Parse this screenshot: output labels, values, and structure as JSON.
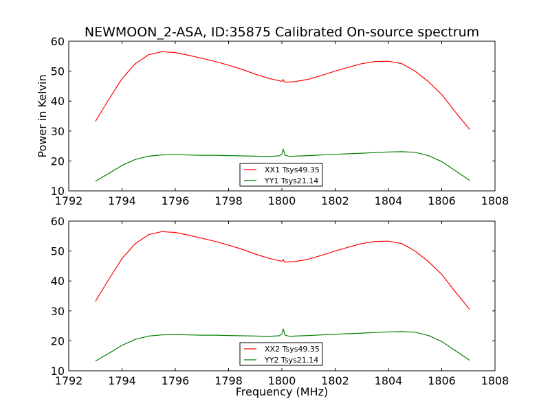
{
  "figure": {
    "title": "NEWMOON_2-ASA, ID:35875 Calibrated On-source spectrum",
    "xlabel": "Frequency (MHz)",
    "ylabel": "Power in Kelvin"
  },
  "colors": {
    "xx": "#ff0000",
    "yy": "#008000",
    "axes": "#000000"
  },
  "chart_data": [
    {
      "type": "line",
      "ylabel": "Power in Kelvin",
      "xlabel": "",
      "xlim": [
        1792,
        1808
      ],
      "ylim": [
        10,
        60
      ],
      "xticks": [
        1792,
        1794,
        1796,
        1798,
        1800,
        1802,
        1804,
        1806,
        1808
      ],
      "yticks": [
        10,
        20,
        30,
        40,
        50,
        60
      ],
      "grid": false,
      "legend_position": "bottom-center",
      "series": [
        {
          "name": "XX1 Tsys49.35",
          "color": "#ff0000",
          "x": [
            1793.0,
            1793.5,
            1794.0,
            1794.5,
            1795.0,
            1795.5,
            1796.0,
            1796.5,
            1797.0,
            1797.5,
            1798.0,
            1798.5,
            1799.0,
            1799.5,
            1800.0,
            1800.05,
            1800.1,
            1800.5,
            1801.0,
            1801.5,
            1802.0,
            1802.5,
            1803.0,
            1803.5,
            1804.0,
            1804.5,
            1805.0,
            1805.5,
            1806.0,
            1806.5,
            1807.05
          ],
          "y": [
            33.2,
            40.5,
            47.5,
            52.5,
            55.5,
            56.5,
            56.2,
            55.3,
            54.3,
            53.2,
            52.0,
            50.6,
            49.0,
            47.6,
            46.6,
            47.2,
            46.3,
            46.5,
            47.3,
            48.6,
            50.0,
            51.3,
            52.5,
            53.2,
            53.3,
            52.5,
            50.0,
            46.5,
            42.2,
            36.5,
            30.5
          ]
        },
        {
          "name": "YY1 Tsys21.14",
          "color": "#008000",
          "x": [
            1793.0,
            1793.5,
            1794.0,
            1794.5,
            1795.0,
            1795.5,
            1796.0,
            1796.5,
            1797.0,
            1797.5,
            1798.0,
            1798.5,
            1799.0,
            1799.5,
            1799.9,
            1800.0,
            1800.05,
            1800.12,
            1800.3,
            1800.5,
            1801.0,
            1801.5,
            1802.0,
            1802.5,
            1803.0,
            1803.5,
            1804.0,
            1804.5,
            1805.0,
            1805.5,
            1806.0,
            1806.5,
            1807.05
          ],
          "y": [
            13.2,
            15.8,
            18.5,
            20.5,
            21.6,
            22.0,
            22.1,
            22.0,
            21.9,
            21.9,
            21.8,
            21.7,
            21.6,
            21.5,
            21.7,
            22.3,
            24.0,
            21.9,
            21.5,
            21.6,
            21.8,
            22.0,
            22.2,
            22.4,
            22.6,
            22.8,
            23.0,
            23.1,
            22.9,
            21.8,
            19.8,
            16.8,
            13.5
          ]
        }
      ]
    },
    {
      "type": "line",
      "xlabel": "Frequency (MHz)",
      "ylabel": "",
      "xlim": [
        1792,
        1808
      ],
      "ylim": [
        10,
        60
      ],
      "xticks": [
        1792,
        1794,
        1796,
        1798,
        1800,
        1802,
        1804,
        1806,
        1808
      ],
      "yticks": [
        10,
        20,
        30,
        40,
        50,
        60
      ],
      "grid": false,
      "legend_position": "bottom-center",
      "series": [
        {
          "name": "XX2 Tsys49.35",
          "color": "#ff0000",
          "x": [
            1793.0,
            1793.5,
            1794.0,
            1794.5,
            1795.0,
            1795.5,
            1796.0,
            1796.5,
            1797.0,
            1797.5,
            1798.0,
            1798.5,
            1799.0,
            1799.5,
            1800.0,
            1800.05,
            1800.1,
            1800.5,
            1801.0,
            1801.5,
            1802.0,
            1802.5,
            1803.0,
            1803.5,
            1804.0,
            1804.5,
            1805.0,
            1805.5,
            1806.0,
            1806.5,
            1807.05
          ],
          "y": [
            33.2,
            40.5,
            47.5,
            52.5,
            55.5,
            56.5,
            56.2,
            55.3,
            54.3,
            53.2,
            52.0,
            50.6,
            49.0,
            47.6,
            46.6,
            47.2,
            46.3,
            46.5,
            47.3,
            48.6,
            50.0,
            51.3,
            52.5,
            53.2,
            53.3,
            52.5,
            50.0,
            46.5,
            42.2,
            36.5,
            30.5
          ]
        },
        {
          "name": "YY2 Tsys21.14",
          "color": "#008000",
          "x": [
            1793.0,
            1793.5,
            1794.0,
            1794.5,
            1795.0,
            1795.5,
            1796.0,
            1796.5,
            1797.0,
            1797.5,
            1798.0,
            1798.5,
            1799.0,
            1799.5,
            1799.9,
            1800.0,
            1800.05,
            1800.12,
            1800.3,
            1800.5,
            1801.0,
            1801.5,
            1802.0,
            1802.5,
            1803.0,
            1803.5,
            1804.0,
            1804.5,
            1805.0,
            1805.5,
            1806.0,
            1806.5,
            1807.05
          ],
          "y": [
            13.2,
            15.8,
            18.5,
            20.5,
            21.6,
            22.0,
            22.1,
            22.0,
            21.9,
            21.9,
            21.8,
            21.7,
            21.6,
            21.5,
            21.7,
            22.3,
            24.0,
            21.9,
            21.5,
            21.6,
            21.8,
            22.0,
            22.2,
            22.4,
            22.6,
            22.8,
            23.0,
            23.1,
            22.9,
            21.8,
            19.8,
            16.8,
            13.5
          ]
        }
      ]
    }
  ]
}
